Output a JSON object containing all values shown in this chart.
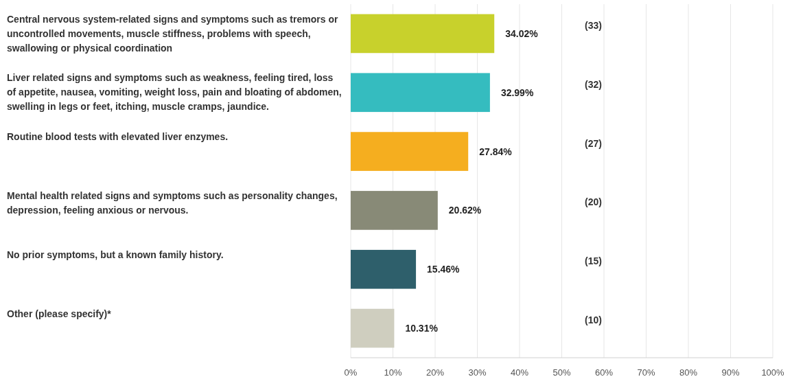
{
  "chart_data": {
    "type": "bar",
    "orientation": "horizontal",
    "categories": [
      "Central nervous system-related signs and  symptoms such as tremors or uncontrolled movements, muscle stiffness, problems with speech, swallowing or physical coordination",
      "Liver related signs and symptoms such as weakness, feeling tired, loss of appetite, nausea, vomiting, weight loss, pain and bloating of abdomen, swelling in legs or feet, itching, muscle cramps, jaundice.",
      "Routine blood tests with elevated liver enzymes.",
      "Mental health related signs and symptoms such as personality changes, depression, feeling anxious or nervous.",
      "No prior symptoms, but a known family history.",
      "Other (please specify)*"
    ],
    "values": [
      34.02,
      32.99,
      27.84,
      20.62,
      15.46,
      10.31
    ],
    "colors": [
      "#c8d12c",
      "#35bcbf",
      "#f5ae1f",
      "#888a77",
      "#2e5f6b",
      "#cfcebf"
    ],
    "value_labels": [
      "34.02%",
      "32.99%",
      "27.84%",
      "20.62%",
      "15.46%",
      "10.31%"
    ],
    "annotations": [
      "(33)",
      "(32)",
      "(27)",
      "(20)",
      "(15)",
      "(10)"
    ],
    "xlim": [
      0,
      100
    ],
    "xticks": [
      {
        "value": 0,
        "label": "0%"
      },
      {
        "value": 10,
        "label": "10%"
      },
      {
        "value": 20,
        "label": "20%"
      },
      {
        "value": 30,
        "label": "30%"
      },
      {
        "value": 40,
        "label": "40%"
      },
      {
        "value": 50,
        "label": "50%"
      },
      {
        "value": 60,
        "label": "60%"
      },
      {
        "value": 70,
        "label": "70%"
      },
      {
        "value": 80,
        "label": "80%"
      },
      {
        "value": 90,
        "label": "90%"
      },
      {
        "value": 100,
        "label": "100%"
      }
    ],
    "grid": "x"
  }
}
